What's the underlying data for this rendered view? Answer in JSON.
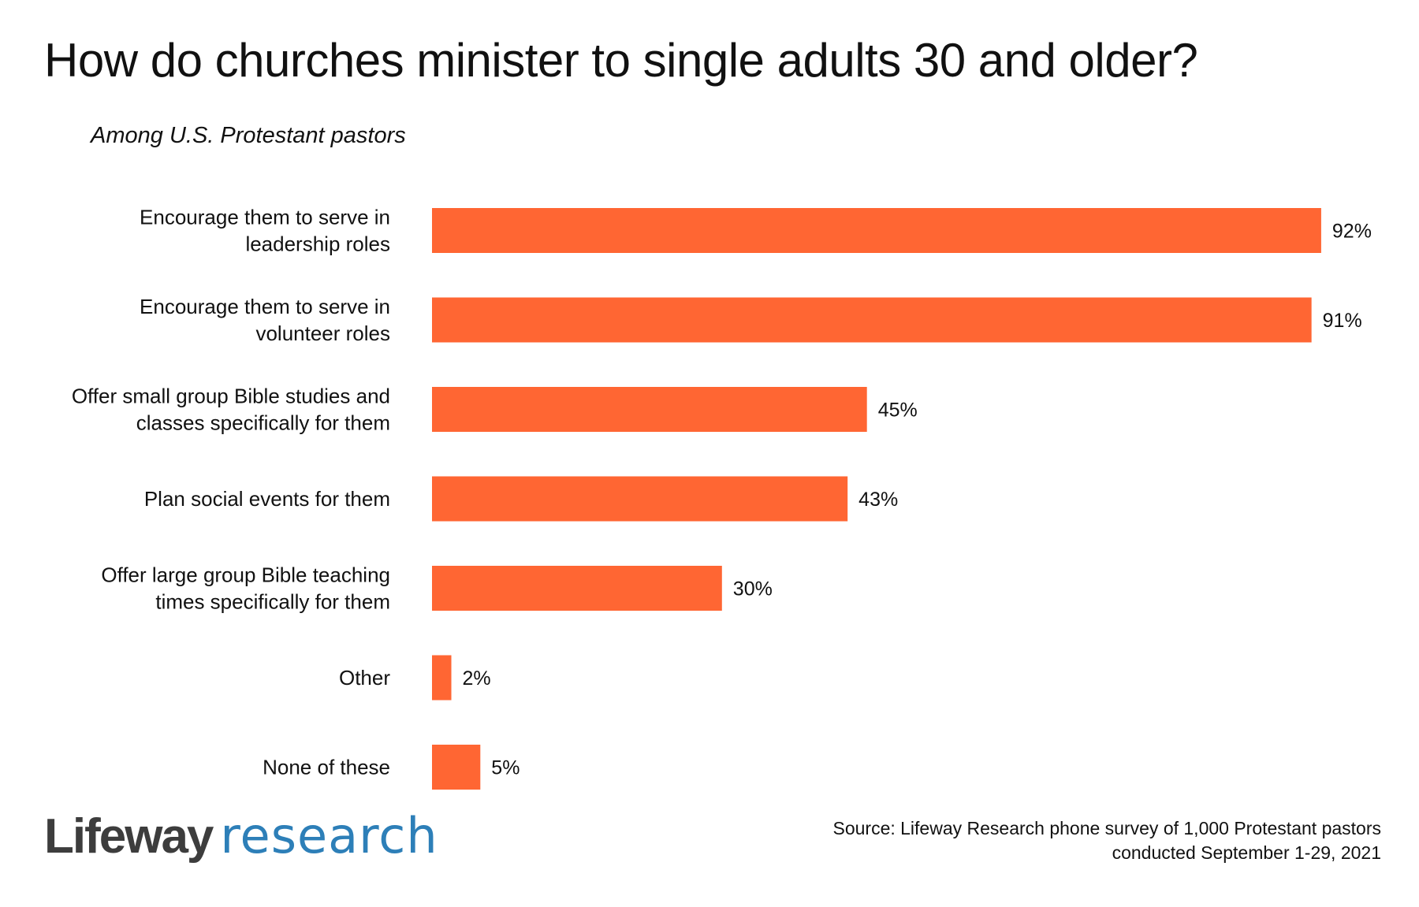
{
  "title": "How do churches minister to single adults 30 and older?",
  "subtitle": "Among U.S. Protestant pastors",
  "colors": {
    "bar": "#ff6633",
    "text": "#111111",
    "brand_dark": "#3d3d3d",
    "brand_blue": "#2d7fb8"
  },
  "chart_data": {
    "type": "bar",
    "orientation": "horizontal",
    "title": "How do churches minister to single adults 30 and older?",
    "subtitle": "Among U.S. Protestant pastors",
    "categories": [
      [
        "Encourage them to serve in",
        "leadership roles"
      ],
      [
        "Encourage them to serve in",
        "volunteer roles"
      ],
      [
        "Offer small group Bible studies and",
        "classes specifically for them"
      ],
      [
        "Plan social events for them"
      ],
      [
        "Offer large group Bible teaching",
        "times specifically for them"
      ],
      [
        "Other"
      ],
      [
        "None of these"
      ]
    ],
    "values": [
      92,
      91,
      45,
      43,
      30,
      2,
      5
    ],
    "value_labels": [
      "92%",
      "91%",
      "45%",
      "43%",
      "30%",
      "2%",
      "5%"
    ],
    "unit": "%",
    "xlim": [
      0,
      100
    ],
    "grid": false,
    "legend": "none"
  },
  "logo": {
    "part1": "Lifeway",
    "part2": "research"
  },
  "source": {
    "line1": "Source: Lifeway Research phone survey of 1,000 Protestant pastors",
    "line2": "conducted September 1-29, 2021"
  }
}
